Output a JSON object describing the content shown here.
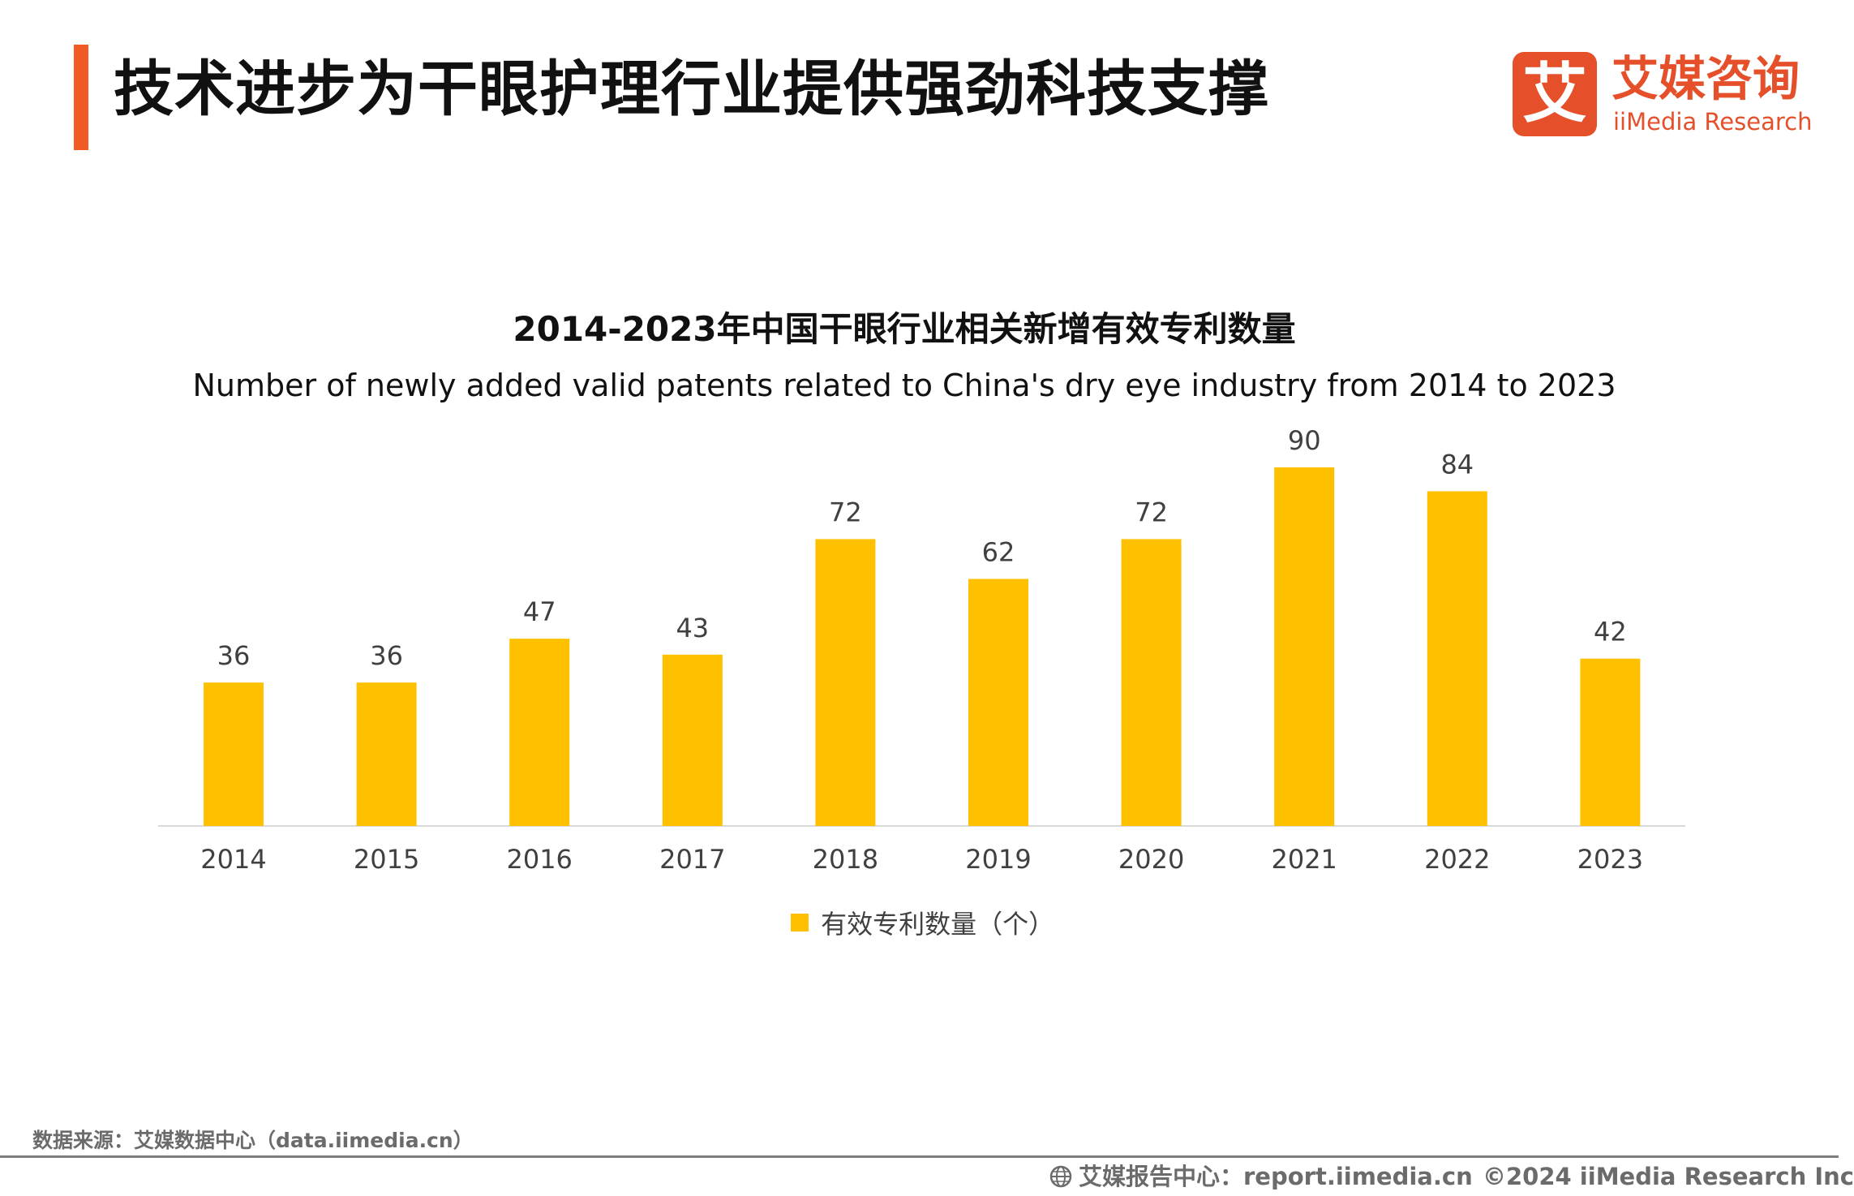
{
  "header": {
    "title": "技术进步为干眼护理行业提供强劲科技支撑",
    "accent_color": "#f15a24"
  },
  "brand": {
    "mark": "艾",
    "name_cn": "艾媒咨询",
    "name_en": "iiMedia Research",
    "color": "#e5502b"
  },
  "chart_data": {
    "type": "bar",
    "title": "2014-2023年中国干眼行业相关新增有效专利数量",
    "subtitle": "Number of newly added valid patents related to China's dry eye industry from 2014 to 2023",
    "categories": [
      "2014",
      "2015",
      "2016",
      "2017",
      "2018",
      "2019",
      "2020",
      "2021",
      "2022",
      "2023"
    ],
    "series": [
      {
        "name": "有效专利数量（个）",
        "values": [
          36,
          36,
          47,
          43,
          72,
          62,
          72,
          90,
          84,
          42
        ],
        "color": "#ffc000"
      }
    ],
    "xlabel": "",
    "ylabel": "",
    "ylim": [
      0,
      90
    ],
    "grid": false,
    "legend_position": "bottom",
    "data_labels": true
  },
  "footer": {
    "source": "数据来源：艾媒数据中心（data.iimedia.cn）",
    "report": "艾媒报告中心：report.iimedia.cn",
    "copyright": "©2024  iiMedia Research  Inc",
    "report_icon": "globe-icon"
  }
}
